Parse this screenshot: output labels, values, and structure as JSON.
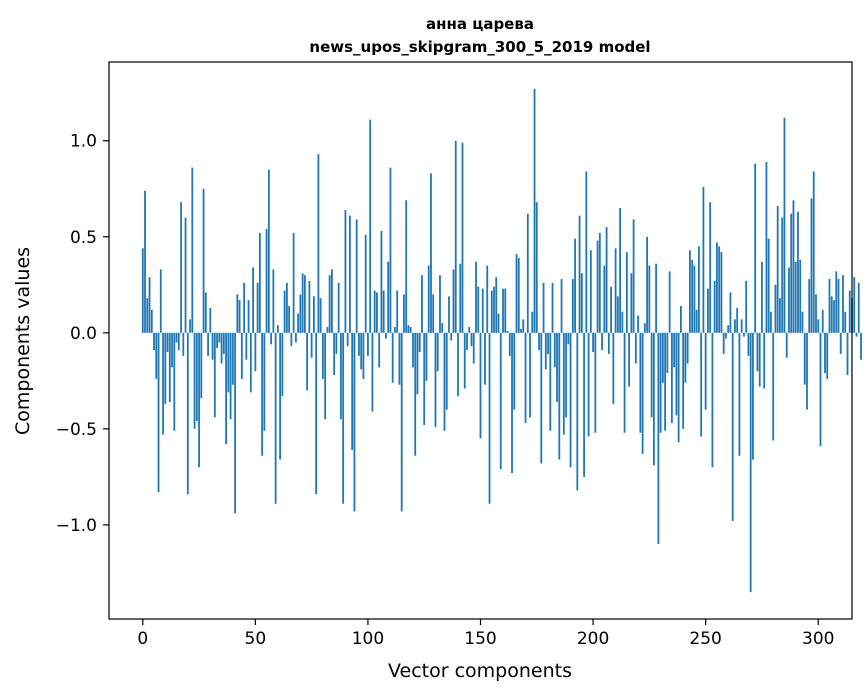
{
  "chart_data": {
    "type": "bar",
    "title": "анна царева",
    "subtitle": "news_upos_skipgram_300_5_2019 model",
    "xlabel": "Vector components",
    "ylabel": "Components values",
    "xlim": [
      -15,
      315
    ],
    "ylim": [
      -1.49,
      1.41
    ],
    "xticks": [
      0,
      50,
      100,
      150,
      200,
      250,
      300
    ],
    "yticks": [
      -1.0,
      -0.5,
      0.0,
      0.5,
      1.0
    ],
    "ytick_labels": [
      "−1.0",
      "−0.5",
      "0.0",
      "0.5",
      "1.0"
    ],
    "bar_color": "#1f77b4",
    "grid": false,
    "values": [
      0.44,
      0.74,
      0.18,
      0.29,
      0.12,
      -0.09,
      -0.24,
      -0.83,
      0.33,
      -0.53,
      -0.37,
      -0.1,
      -0.36,
      -0.18,
      -0.51,
      -0.05,
      -0.09,
      0.68,
      -0.12,
      0.6,
      -0.84,
      0.07,
      0.86,
      -0.5,
      -0.46,
      -0.7,
      -0.34,
      0.75,
      0.21,
      -0.12,
      0.13,
      -0.14,
      -0.44,
      -0.08,
      -0.05,
      -0.16,
      -0.11,
      -0.58,
      -0.31,
      -0.45,
      -0.27,
      -0.94,
      0.2,
      0.17,
      -0.24,
      0.26,
      -0.14,
      0.17,
      -0.31,
      0.34,
      -0.2,
      0.26,
      0.52,
      -0.64,
      -0.51,
      0.54,
      0.85,
      -0.06,
      0.33,
      -0.89,
      0.04,
      -0.66,
      -0.33,
      0.22,
      0.26,
      0.14,
      -0.07,
      0.52,
      -0.05,
      0.1,
      0.2,
      0.31,
      0.3,
      -0.3,
      0.27,
      -0.13,
      0.19,
      -0.84,
      0.93,
      0.18,
      -0.24,
      -0.45,
      0.03,
      0.3,
      0.33,
      -0.22,
      -0.11,
      0.26,
      -0.45,
      -0.89,
      0.64,
      -0.07,
      0.61,
      -0.61,
      -0.93,
      0.59,
      -0.12,
      -0.19,
      -0.24,
      0.51,
      -0.12,
      1.11,
      -0.41,
      0.22,
      0.21,
      -0.18,
      0.53,
      0.22,
      -0.03,
      0.37,
      0.86,
      -0.26,
      0.03,
      0.22,
      -0.27,
      -0.93,
      0.2,
      0.69,
      0.04,
      0.03,
      -0.18,
      -0.64,
      -0.32,
      -0.1,
      0.3,
      -0.48,
      -0.25,
      0.35,
      0.83,
      0.2,
      -0.49,
      -0.2,
      0.3,
      0.05,
      -0.51,
      -0.4,
      0.19,
      -0.04,
      0.33,
      1.0,
      -0.33,
      0.36,
      0.99,
      -0.29,
      -0.09,
      0.03,
      -0.07,
      -0.16,
      0.37,
      0.24,
      -0.55,
      0.23,
      -0.27,
      0.35,
      -0.89,
      0.22,
      0.24,
      0.29,
      0.1,
      -0.71,
      0.23,
      0.23,
      0.01,
      -0.12,
      -0.73,
      -0.4,
      0.41,
      0.39,
      0.02,
      0.07,
      -0.47,
      0.62,
      -0.44,
      0.11,
      1.27,
      0.68,
      -0.09,
      -0.68,
      0.26,
      -0.19,
      -0.11,
      -0.51,
      0.26,
      -0.18,
      -0.36,
      -0.66,
      0.28,
      -0.53,
      -0.44,
      -0.06,
      -0.7,
      0.28,
      0.49,
      -0.82,
      0.61,
      0.31,
      -0.75,
      0.84,
      -0.54,
      0.43,
      -0.1,
      -0.52,
      0.48,
      0.52,
      -0.09,
      0.35,
      0.55,
      -0.11,
      0.24,
      -0.37,
      0.44,
      0.19,
      0.65,
      0.11,
      -0.52,
      0.42,
      -0.28,
      0.31,
      0.59,
      -0.16,
      0.09,
      -0.52,
      -0.63,
      0.05,
      0.5,
      0.35,
      -0.44,
      -0.69,
      0.36,
      -1.1,
      -0.52,
      -0.26,
      -0.51,
      -0.21,
      0.32,
      -0.47,
      -0.18,
      -0.43,
      -0.57,
      0.14,
      -0.5,
      -0.26,
      -0.16,
      0.43,
      0.38,
      0.35,
      0.12,
      0.45,
      -0.54,
      0.76,
      -0.4,
      0.23,
      0.68,
      -0.7,
      0.27,
      0.47,
      0.45,
      0.42,
      -0.11,
      -0.03,
      0.04,
      0.21,
      -0.98,
      0.07,
      0.13,
      -0.64,
      0.07,
      -0.02,
      0.27,
      -0.12,
      -1.35,
      -0.66,
      0.88,
      -0.2,
      -0.28,
      0.37,
      -0.29,
      0.89,
      0.49,
      0.11,
      -0.56,
      0.25,
      0.66,
      0.18,
      0.6,
      1.12,
      -0.13,
      0.34,
      0.62,
      0.69,
      0.37,
      0.63,
      0.38,
      0.11,
      -0.27,
      -0.4,
      0.28,
      0.7,
      0.84,
      0.2,
      0.07,
      -0.59,
      0.12,
      -0.21,
      -0.24,
      0.28,
      0.19,
      0.17,
      0.32,
      0.28,
      -0.11,
      0.3,
      0.11,
      -0.22,
      0.22,
      0.18,
      0.29,
      -0.02,
      0.26,
      -0.14
    ]
  }
}
